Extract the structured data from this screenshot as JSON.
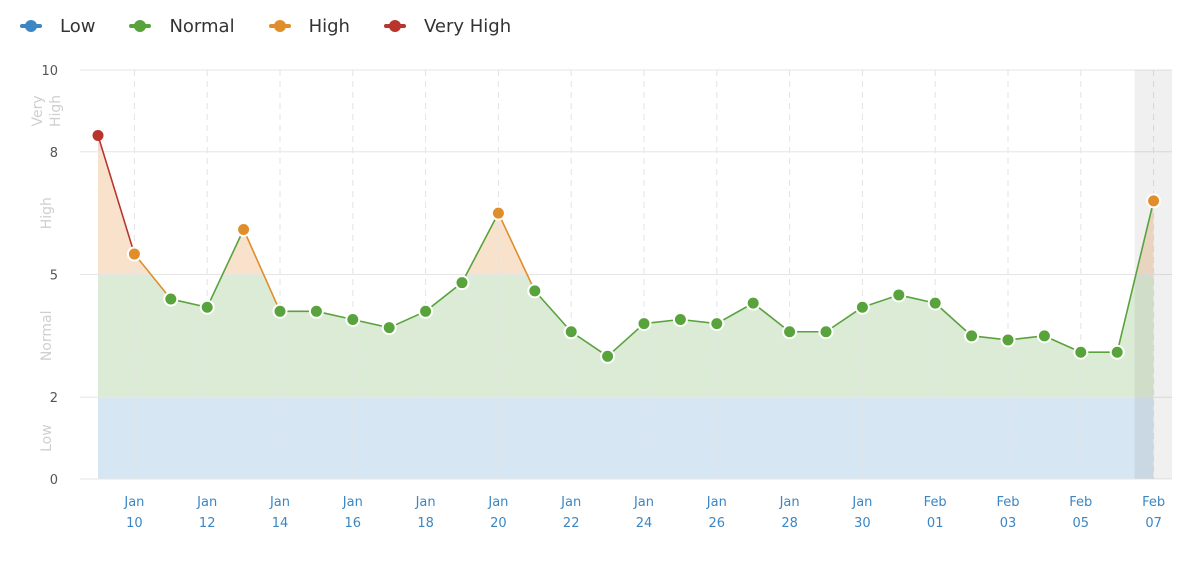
{
  "legend": [
    {
      "label": "Low",
      "color": "#3b86c3"
    },
    {
      "label": "Normal",
      "color": "#58a33c"
    },
    {
      "label": "High",
      "color": "#e08e2b"
    },
    {
      "label": "Very High",
      "color": "#b8352d"
    }
  ],
  "chart_data": {
    "type": "line",
    "title": "",
    "xlabel": "",
    "ylabel": "",
    "ylim": [
      0,
      10
    ],
    "y_ticks": [
      0,
      2,
      5,
      8,
      10
    ],
    "grid": true,
    "legend_position": "top-left",
    "bands": [
      {
        "label": "Low",
        "from": 0,
        "to": 2,
        "color": "#d7e6f3"
      },
      {
        "label": "Normal",
        "from": 2,
        "to": 5,
        "color": "#dcebd6"
      },
      {
        "label": "High",
        "from": 5,
        "to": 8,
        "color": "#f8e2cc"
      },
      {
        "label": "Very High",
        "from": 8,
        "to": 10,
        "color": "#f1d6d4"
      }
    ],
    "x_tick_labels": [
      [
        "Jan",
        "10"
      ],
      [
        "Jan",
        "12"
      ],
      [
        "Jan",
        "14"
      ],
      [
        "Jan",
        "16"
      ],
      [
        "Jan",
        "18"
      ],
      [
        "Jan",
        "20"
      ],
      [
        "Jan",
        "22"
      ],
      [
        "Jan",
        "24"
      ],
      [
        "Jan",
        "26"
      ],
      [
        "Jan",
        "28"
      ],
      [
        "Jan",
        "30"
      ],
      [
        "Feb",
        "01"
      ],
      [
        "Feb",
        "03"
      ],
      [
        "Feb",
        "05"
      ],
      [
        "Feb",
        "07"
      ]
    ],
    "x": [
      "Jan 09",
      "Jan 10",
      "Jan 11",
      "Jan 12",
      "Jan 13",
      "Jan 14",
      "Jan 15",
      "Jan 16",
      "Jan 17",
      "Jan 18",
      "Jan 19",
      "Jan 20",
      "Jan 21",
      "Jan 22",
      "Jan 23",
      "Jan 24",
      "Jan 25",
      "Jan 26",
      "Jan 27",
      "Jan 28",
      "Jan 29",
      "Jan 30",
      "Jan 31",
      "Feb 01",
      "Feb 02",
      "Feb 03",
      "Feb 04",
      "Feb 05",
      "Feb 06",
      "Feb 07"
    ],
    "series": [
      {
        "values": [
          8.4,
          5.5,
          4.4,
          4.2,
          6.1,
          4.1,
          4.1,
          3.9,
          3.7,
          4.1,
          4.8,
          6.5,
          4.6,
          3.6,
          3.0,
          3.8,
          3.9,
          3.8,
          4.3,
          3.6,
          3.6,
          4.2,
          4.5,
          4.3,
          3.5,
          3.4,
          3.5,
          3.1,
          3.1,
          6.8
        ]
      }
    ],
    "highlight_last": true
  }
}
